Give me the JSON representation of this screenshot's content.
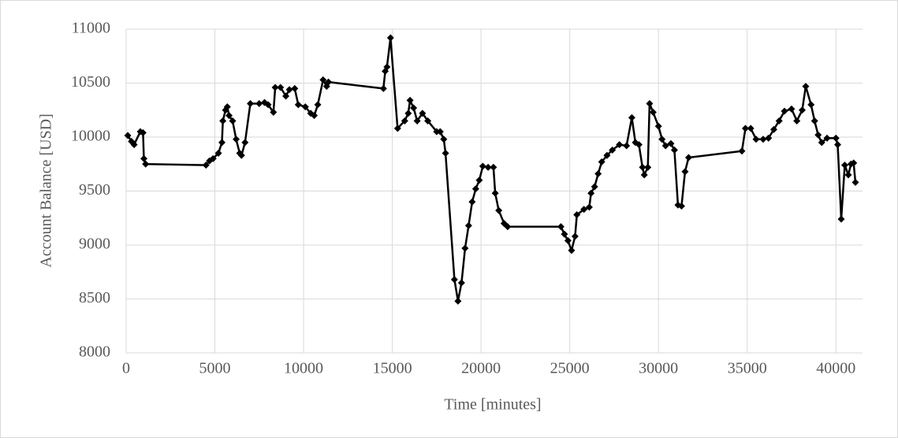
{
  "chart_data": {
    "type": "line",
    "x_label": "Time [minutes]",
    "y_label": "Account Balance [USD]",
    "color": "#000000",
    "marker": "diamond",
    "grid": true,
    "xlim": [
      0,
      41500
    ],
    "ylim": [
      8000,
      11000
    ],
    "xticks": [
      0,
      5000,
      10000,
      15000,
      20000,
      25000,
      30000,
      35000,
      40000
    ],
    "yticks": [
      8000,
      8500,
      9000,
      9500,
      10000,
      10500,
      11000
    ],
    "x": [
      90,
      300,
      450,
      800,
      950,
      1000,
      1100,
      4500,
      4700,
      4900,
      5200,
      5400,
      5450,
      5600,
      5700,
      5800,
      6000,
      6200,
      6400,
      6500,
      6700,
      7000,
      7500,
      7800,
      8000,
      8300,
      8400,
      8700,
      9000,
      9200,
      9500,
      9700,
      10100,
      10400,
      10600,
      10800,
      11100,
      11300,
      11400,
      14500,
      14600,
      14700,
      14900,
      15300,
      15700,
      15900,
      16000,
      16200,
      16400,
      16700,
      17000,
      17500,
      17700,
      17900,
      18000,
      18500,
      18700,
      18900,
      19100,
      19300,
      19500,
      19700,
      19900,
      20100,
      20400,
      20700,
      20800,
      21000,
      21300,
      21500,
      24500,
      24700,
      24900,
      25100,
      25300,
      25400,
      25800,
      26100,
      26200,
      26400,
      26600,
      26800,
      27100,
      27400,
      27800,
      28200,
      28500,
      28700,
      28900,
      29100,
      29200,
      29400,
      29500,
      29700,
      30000,
      30200,
      30400,
      30700,
      30900,
      31100,
      31300,
      31500,
      31700,
      34700,
      34900,
      35200,
      35500,
      35900,
      36200,
      36500,
      36800,
      37100,
      37500,
      37800,
      38100,
      38300,
      38600,
      38800,
      39000,
      39200,
      39500,
      40000,
      40100,
      40300,
      40500,
      40700,
      40850,
      41000,
      41100
    ],
    "values": [
      10015,
      9960,
      9930,
      10050,
      10040,
      9800,
      9750,
      9740,
      9780,
      9800,
      9850,
      9950,
      10150,
      10250,
      10280,
      10200,
      10150,
      9980,
      9850,
      9830,
      9950,
      10310,
      10310,
      10320,
      10300,
      10230,
      10460,
      10460,
      10380,
      10440,
      10450,
      10300,
      10280,
      10220,
      10200,
      10300,
      10530,
      10470,
      10510,
      10450,
      10610,
      10650,
      10920,
      10080,
      10150,
      10220,
      10340,
      10270,
      10150,
      10220,
      10150,
      10050,
      10050,
      9980,
      9850,
      8680,
      8480,
      8650,
      8970,
      9180,
      9400,
      9520,
      9600,
      9730,
      9720,
      9720,
      9480,
      9320,
      9200,
      9170,
      9170,
      9100,
      9040,
      8950,
      9080,
      9280,
      9330,
      9350,
      9480,
      9540,
      9660,
      9770,
      9830,
      9880,
      9930,
      9920,
      10180,
      9950,
      9930,
      9720,
      9650,
      9720,
      10310,
      10230,
      10100,
      9980,
      9920,
      9940,
      9880,
      9370,
      9360,
      9680,
      9810,
      9870,
      10080,
      10080,
      9980,
      9980,
      9990,
      10070,
      10150,
      10240,
      10260,
      10150,
      10250,
      10470,
      10300,
      10150,
      10020,
      9950,
      9990,
      9990,
      9930,
      9240,
      9740,
      9650,
      9750,
      9760,
      9580
    ]
  }
}
